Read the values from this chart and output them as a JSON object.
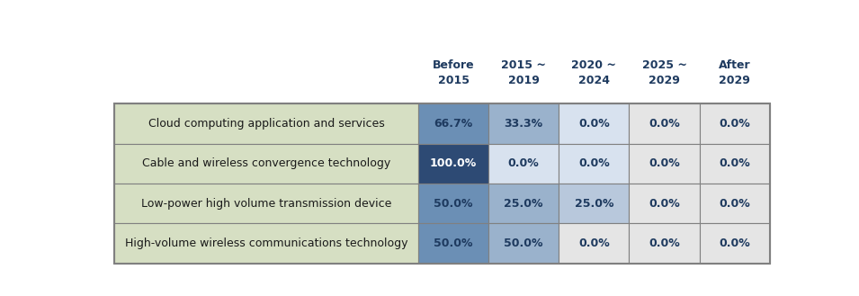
{
  "col_headers": [
    "Before\n2015",
    "2015 ~\n2019",
    "2020 ~\n2024",
    "2025 ~\n2029",
    "After\n2029"
  ],
  "row_labels": [
    "Cloud computing application and services",
    "Cable and wireless convergence technology",
    "Low-power high volume transmission device",
    "High-volume wireless communications technology"
  ],
  "values": [
    [
      66.7,
      33.3,
      0.0,
      0.0,
      0.0
    ],
    [
      100.0,
      0.0,
      0.0,
      0.0,
      0.0
    ],
    [
      50.0,
      25.0,
      25.0,
      0.0,
      0.0
    ],
    [
      50.0,
      50.0,
      0.0,
      0.0,
      0.0
    ]
  ],
  "cell_colors": [
    [
      "#6b8fb5",
      "#9ab2cc",
      "#d8e2ef",
      "#e5e5e5",
      "#e5e5e5"
    ],
    [
      "#2d4a74",
      "#d8e2ef",
      "#d8e2ef",
      "#e5e5e5",
      "#e5e5e5"
    ],
    [
      "#6b8fb5",
      "#9ab2cc",
      "#b8c8dc",
      "#e5e5e5",
      "#e5e5e5"
    ],
    [
      "#6b8fb5",
      "#9ab2cc",
      "#e5e5e5",
      "#e5e5e5",
      "#e5e5e5"
    ]
  ],
  "text_colors": [
    [
      "#1e3a5f",
      "#1e3a5f",
      "#1e3a5f",
      "#1e3a5f",
      "#1e3a5f"
    ],
    [
      "#ffffff",
      "#1e3a5f",
      "#1e3a5f",
      "#1e3a5f",
      "#1e3a5f"
    ],
    [
      "#1e3a5f",
      "#1e3a5f",
      "#1e3a5f",
      "#1e3a5f",
      "#1e3a5f"
    ],
    [
      "#1e3a5f",
      "#1e3a5f",
      "#1e3a5f",
      "#1e3a5f",
      "#1e3a5f"
    ]
  ],
  "row_bg_color": "#d6dfc3",
  "header_text_color": "#1e3a5f",
  "border_color": "#808080",
  "fig_bg_color": "#ffffff",
  "header_fontsize": 9,
  "cell_fontsize": 9,
  "row_label_fontsize": 9
}
